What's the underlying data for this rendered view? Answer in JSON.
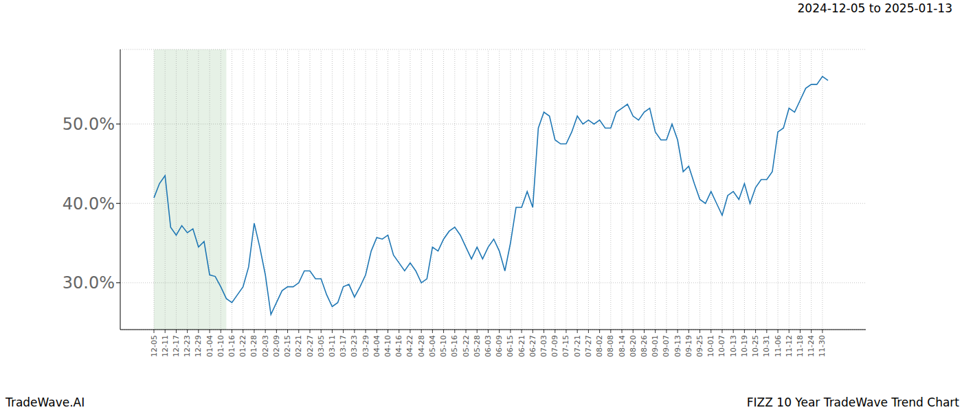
{
  "chart_data": {
    "type": "line",
    "title": "2024-12-05 to 2025-01-13",
    "subtitle": "FIZZ 10 Year TradeWave Trend Chart",
    "annotations": [
      "TradeWave.AI"
    ],
    "color": "#1f77b4",
    "grid": true,
    "shade": [
      0,
      13
    ],
    "ylim": [
      24.1,
      59.4
    ],
    "yticks": [
      {
        "value": 30,
        "label": "30.0%"
      },
      {
        "value": 40,
        "label": "40.0%"
      },
      {
        "value": 50,
        "label": "50.0%"
      }
    ],
    "categories": [
      "12-05",
      null,
      "12-11",
      null,
      "12-17",
      null,
      "12-23",
      null,
      "12-29",
      null,
      "01-04",
      null,
      "01-10",
      null,
      "01-16",
      null,
      "01-22",
      null,
      "01-28",
      null,
      "02-03",
      null,
      "02-09",
      null,
      "02-15",
      null,
      "02-21",
      null,
      "02-27",
      null,
      "03-05",
      null,
      "03-11",
      null,
      "03-17",
      null,
      "03-23",
      null,
      "03-29",
      null,
      "04-04",
      null,
      "04-10",
      null,
      "04-16",
      null,
      "04-22",
      null,
      "04-28",
      null,
      "05-04",
      null,
      "05-10",
      null,
      "05-16",
      null,
      "05-22",
      null,
      "05-28",
      null,
      "06-03",
      null,
      "06-09",
      null,
      "06-15",
      null,
      "06-21",
      null,
      "06-27",
      null,
      "07-03",
      null,
      "07-09",
      null,
      "07-15",
      null,
      "07-21",
      null,
      "07-27",
      null,
      "08-02",
      null,
      "08-08",
      null,
      "08-14",
      null,
      "08-20",
      null,
      "08-26",
      null,
      "09-01",
      null,
      "09-07",
      null,
      "09-13",
      null,
      "09-19",
      null,
      "09-25",
      null,
      "10-01",
      null,
      "10-07",
      null,
      "10-13",
      null,
      "10-19",
      null,
      "10-25",
      null,
      "10-31",
      null,
      "11-06",
      null,
      "11-12",
      null,
      "11-18",
      null,
      "11-24",
      null,
      "11-30",
      null
    ],
    "values": [
      40.7,
      42.5,
      43.5,
      37,
      36,
      37.2,
      36.3,
      36.8,
      34.5,
      35.2,
      31,
      30.8,
      29.5,
      28,
      27.5,
      28.5,
      29.5,
      32,
      37.5,
      34.5,
      31,
      26,
      27.5,
      29,
      29.5,
      29.5,
      30,
      31.5,
      31.5,
      30.5,
      30.5,
      28.5,
      27,
      27.5,
      29.5,
      29.8,
      28.2,
      29.5,
      31,
      34,
      35.7,
      35.5,
      36,
      33.5,
      32.5,
      31.5,
      32.5,
      31.5,
      30,
      30.5,
      34.5,
      34,
      35.5,
      36.5,
      37,
      36,
      34.5,
      33,
      34.5,
      33,
      34.5,
      35.5,
      34,
      31.5,
      35,
      39.5,
      39.5,
      41.5,
      39.5,
      49.5,
      51.5,
      51,
      48,
      47.5,
      47.5,
      49,
      51,
      50,
      50.5,
      50,
      50.5,
      49.5,
      49.5,
      51.5,
      52,
      52.5,
      51,
      50.5,
      51.5,
      52,
      49,
      48,
      48,
      50,
      48,
      44,
      44.7,
      42.5,
      40.5,
      40,
      41.5,
      40,
      38.5,
      41,
      41.5,
      40.5,
      42.5,
      40,
      42,
      43,
      43,
      44,
      49,
      49.5,
      52,
      51.5,
      53,
      54.5,
      55,
      55,
      56,
      55.5
    ]
  }
}
